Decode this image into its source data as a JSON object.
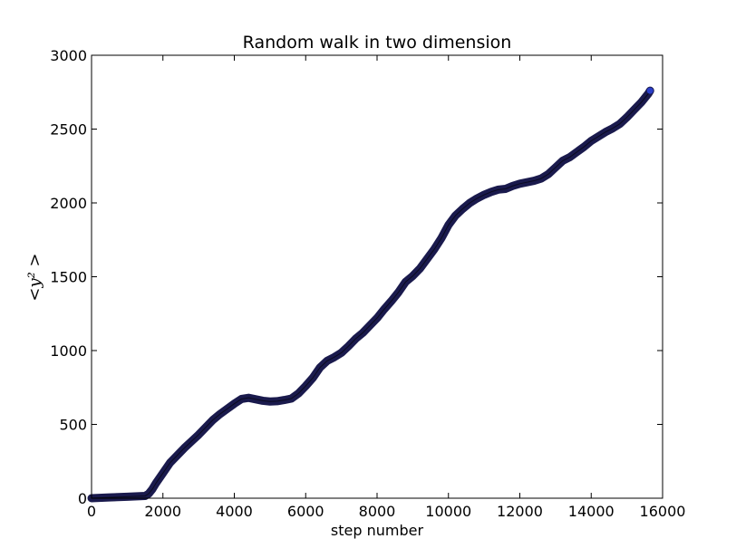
{
  "chart_data": {
    "type": "line",
    "title": "Random walk in two dimension",
    "xlabel": "step number",
    "ylabel": "<y² >",
    "xlim": [
      0,
      16000
    ],
    "ylim": [
      0,
      3000
    ],
    "xticks": [
      "0",
      "2000",
      "4000",
      "6000",
      "8000",
      "10000",
      "12000",
      "14000",
      "16000"
    ],
    "yticks": [
      "0",
      "500",
      "1000",
      "1500",
      "2000",
      "2500",
      "3000"
    ],
    "grid": false,
    "line_color": "#1a1a4d",
    "end_marker_color": "#2b3fc9",
    "series": [
      {
        "x": [
          0,
          500,
          1000,
          1500,
          1600,
          1700,
          1800,
          2000,
          2200,
          2400,
          2600,
          2800,
          3000,
          3200,
          3400,
          3600,
          3800,
          4000,
          4200,
          4400,
          4600,
          4800,
          5000,
          5200,
          5400,
          5600,
          5800,
          6000,
          6200,
          6400,
          6600,
          6800,
          7000,
          7200,
          7400,
          7600,
          7800,
          8000,
          8200,
          8400,
          8600,
          8800,
          9000,
          9200,
          9400,
          9600,
          9800,
          10000,
          10200,
          10400,
          10600,
          10800,
          11000,
          11200,
          11400,
          11600,
          11800,
          12000,
          12200,
          12400,
          12600,
          12800,
          13000,
          13200,
          13400,
          13600,
          13800,
          14000,
          14200,
          14400,
          14600,
          14800,
          15000,
          15200,
          15400,
          15600,
          15650
        ],
        "y": [
          0,
          5,
          10,
          15,
          30,
          60,
          100,
          170,
          240,
          290,
          340,
          385,
          430,
          480,
          530,
          570,
          605,
          640,
          672,
          680,
          670,
          660,
          655,
          657,
          665,
          675,
          710,
          760,
          815,
          885,
          930,
          955,
          985,
          1030,
          1080,
          1120,
          1170,
          1220,
          1280,
          1335,
          1395,
          1465,
          1505,
          1555,
          1620,
          1685,
          1760,
          1850,
          1915,
          1960,
          2000,
          2030,
          2055,
          2075,
          2090,
          2095,
          2115,
          2130,
          2140,
          2150,
          2165,
          2195,
          2240,
          2285,
          2310,
          2345,
          2380,
          2420,
          2450,
          2480,
          2505,
          2535,
          2580,
          2630,
          2680,
          2740,
          2760
        ]
      }
    ]
  }
}
